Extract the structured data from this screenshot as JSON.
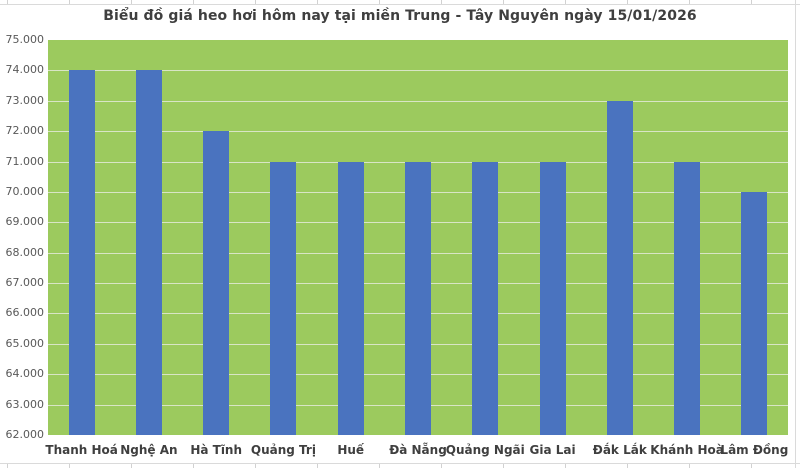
{
  "title": "Biểu đồ giá heo hơi hôm nay tại miền Trung - Tây Nguyên ngày 15/01/2026",
  "colors": {
    "bar": "#4a73bf",
    "plot_bg": "#9cca5e",
    "gridline": "#d8e5c5",
    "title_text": "#3f3f3f",
    "axis_text": "#595959",
    "category_text": "#3f3f3f",
    "frame_line": "#dadada",
    "sliver_tick": "#c6c6c6"
  },
  "chart_data": {
    "type": "bar",
    "title": "Biểu đồ giá heo hơi hôm nay tại miền Trung - Tây Nguyên ngày 15/01/2026",
    "categories": [
      "Thanh Hoá",
      "Nghệ An",
      "Hà Tĩnh",
      "Quảng Trị",
      "Huế",
      "Đà Nẵng",
      "Quảng Ngãi",
      "Gia Lai",
      "Đắk Lắk",
      "Khánh Hoà",
      "Lâm Đồng"
    ],
    "values": [
      74000,
      74000,
      72000,
      71000,
      71000,
      71000,
      71000,
      71000,
      73000,
      71000,
      70000
    ],
    "xlabel": "",
    "ylabel": "",
    "ylim": [
      62000,
      75000
    ],
    "ytick_step": 1000,
    "ytick_labels": [
      "62.000",
      "63.000",
      "64.000",
      "65.000",
      "66.000",
      "67.000",
      "68.000",
      "69.000",
      "70.000",
      "71.000",
      "72.000",
      "73.000",
      "74.000",
      "75.000"
    ],
    "grid": "horizontal",
    "legend": "none",
    "plot_background": "#9cca5e",
    "bar_color": "#4a73bf"
  }
}
